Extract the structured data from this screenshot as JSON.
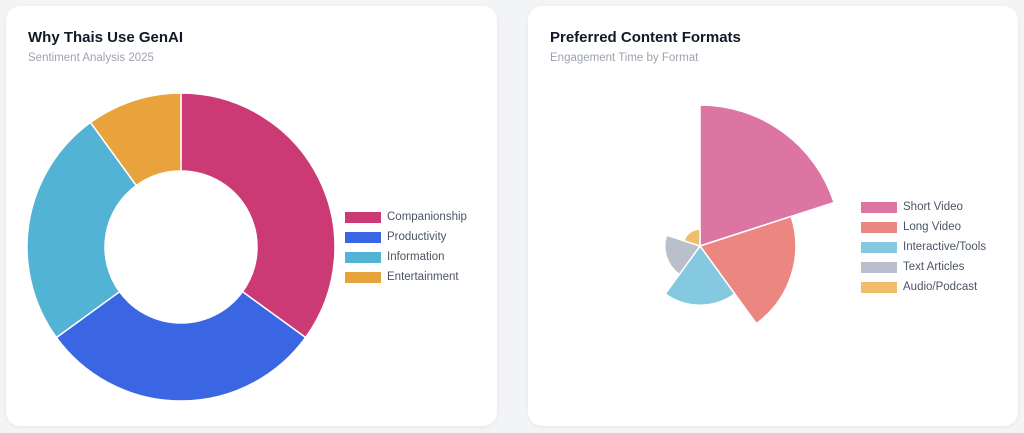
{
  "chart_data": [
    {
      "type": "pie",
      "variant": "doughnut",
      "title": "Why Thais Use GenAI",
      "subtitle": "Sentiment Analysis 2025",
      "labels": [
        "Companionship",
        "Productivity",
        "Information",
        "Entertainment"
      ],
      "values": [
        35,
        30,
        25,
        10
      ],
      "colors": [
        "#cc3a75",
        "#3a66e3",
        "#52b3d4",
        "#e8a33d"
      ],
      "legend": "right"
    },
    {
      "type": "polarArea",
      "title": "Preferred Content Formats",
      "subtitle": "Engagement Time by Format",
      "labels": [
        "Short Video",
        "Long Video",
        "Interactive/Tools",
        "Text Articles",
        "Audio/Podcast"
      ],
      "values": [
        100,
        68,
        42,
        25,
        12
      ],
      "colors": [
        "#dc75a3",
        "#eb8680",
        "#85c9e1",
        "#b9bfcb",
        "#f0bd6c"
      ],
      "legend": "right"
    }
  ]
}
